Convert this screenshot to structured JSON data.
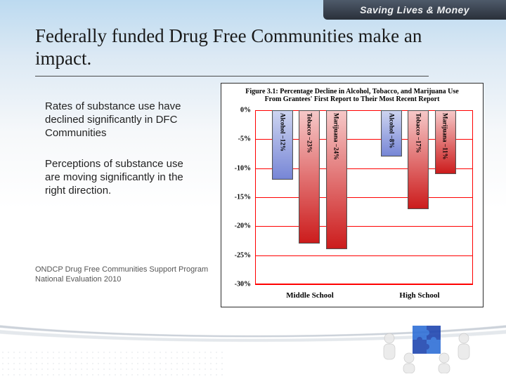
{
  "ribbon": {
    "text": "Saving Lives & Money"
  },
  "title": "Federally funded Drug Free Communities make an impact.",
  "paragraphs": {
    "p1": "Rates of substance use have declined significantly in DFC Communities",
    "p2": "Perceptions of substance use are moving significantly in the right direction."
  },
  "citation": "ONDCP Drug Free Communities Support Program National Evaluation 2010",
  "chart": {
    "type": "bar",
    "title_line1": "Figure 3.1: Percentage Decline in Alcohol, Tobacco, and Marijuana Use",
    "title_line2": "From Grantees' First Report to Their Most Recent Report",
    "ylim_min": -30,
    "ylim_max": 0,
    "ytick_step": 5,
    "ytick_suffix": "%",
    "grid_color": "#ff0000",
    "background": "#ffffff",
    "bar_width_pct": 22,
    "bar_gap_pct": 6,
    "groups": [
      {
        "name": "Middle School",
        "bars": [
          {
            "label": "Alcohol",
            "value": -12,
            "display": "Alcohol −12%",
            "fill_top": "#cdd4f0",
            "fill_bottom": "#7786d6"
          },
          {
            "label": "Tobacco",
            "value": -23,
            "display": "Tobacco −23%",
            "fill_top": "#f6c8c8",
            "fill_bottom": "#cc1c1c"
          },
          {
            "label": "Marijuana",
            "value": -24,
            "display": "Marijuana −24%",
            "fill_top": "#f6c8c8",
            "fill_bottom": "#cc1c1c"
          }
        ]
      },
      {
        "name": "High School",
        "bars": [
          {
            "label": "Alcohol",
            "value": -8,
            "display": "Alcohol −8%",
            "fill_top": "#cdd4f0",
            "fill_bottom": "#7786d6"
          },
          {
            "label": "Tobacco",
            "value": -17,
            "display": "Tobacco −17%",
            "fill_top": "#f6c8c8",
            "fill_bottom": "#cc1c1c"
          },
          {
            "label": "Marijuana",
            "value": -11,
            "display": "Marijuana −11%",
            "fill_top": "#f6c8c8",
            "fill_bottom": "#cc1c1c"
          }
        ]
      }
    ]
  }
}
